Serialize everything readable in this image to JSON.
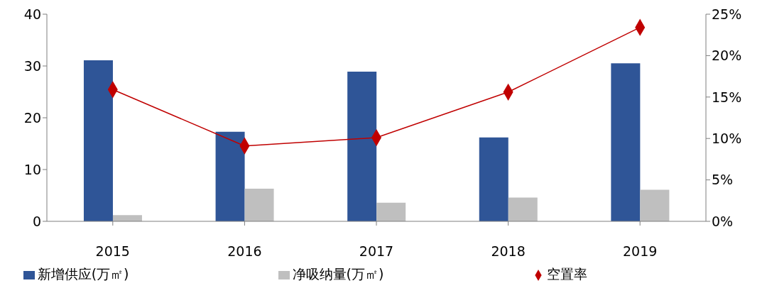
{
  "chart_data": {
    "type": "bar",
    "categories": [
      "2015",
      "2016",
      "2017",
      "2018",
      "2019"
    ],
    "series": [
      {
        "name": "新增供应(万㎡)",
        "color": "#2f5597",
        "values": [
          31.1,
          17.3,
          28.9,
          16.2,
          30.5
        ]
      },
      {
        "name": "净吸纳量(万㎡)",
        "color": "#bfbfbf",
        "values": [
          1.2,
          6.3,
          3.6,
          4.6,
          6.1
        ]
      },
      {
        "name": "空置率",
        "type": "line",
        "axis": "y2",
        "color": "#c00000",
        "marker": "diamond",
        "values": [
          15.9,
          9.1,
          10.1,
          15.6,
          23.4
        ]
      }
    ],
    "ylim": [
      0,
      40
    ],
    "yticks": [
      0,
      10,
      20,
      30,
      40
    ],
    "y2lim": [
      0,
      25
    ],
    "y2ticks": [
      {
        "value": 0,
        "label": "0%"
      },
      {
        "value": 5,
        "label": "5%"
      },
      {
        "value": 10,
        "label": "10%"
      },
      {
        "value": 15,
        "label": "15%"
      },
      {
        "value": 20,
        "label": "20%"
      },
      {
        "value": 25,
        "label": "25%"
      }
    ],
    "grid": false,
    "legend": "bottom"
  }
}
